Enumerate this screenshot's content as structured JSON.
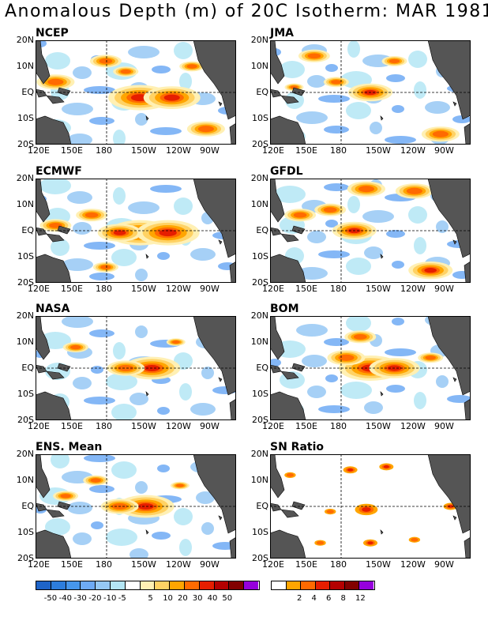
{
  "title": "Anomalous Depth (m) of 20C Isotherm: MAR 1981",
  "x_ticks": [
    "120E",
    "150E",
    "180",
    "150W",
    "120W",
    "90W"
  ],
  "y_ticks": [
    "20N",
    "10N",
    "EQ",
    "10S",
    "20S"
  ],
  "panels": [
    {
      "name": "NCEP",
      "hotspots": [
        [
          0.52,
          0.55,
          1.0
        ],
        [
          0.68,
          0.55,
          0.9
        ],
        [
          0.35,
          0.2,
          0.5
        ],
        [
          0.85,
          0.85,
          0.6
        ],
        [
          0.1,
          0.4,
          0.6
        ],
        [
          0.78,
          0.25,
          0.4
        ],
        [
          0.45,
          0.3,
          0.4
        ]
      ]
    },
    {
      "name": "JMA",
      "hotspots": [
        [
          0.5,
          0.5,
          0.7
        ],
        [
          0.33,
          0.4,
          0.4
        ],
        [
          0.22,
          0.15,
          0.5
        ],
        [
          0.85,
          0.9,
          0.6
        ],
        [
          0.62,
          0.2,
          0.4
        ],
        [
          0.12,
          0.45,
          0.3
        ]
      ]
    },
    {
      "name": "ECMWF",
      "hotspots": [
        [
          0.52,
          0.52,
          1.0
        ],
        [
          0.66,
          0.52,
          1.0
        ],
        [
          0.42,
          0.52,
          0.7
        ],
        [
          0.28,
          0.35,
          0.5
        ],
        [
          0.1,
          0.45,
          0.5
        ],
        [
          0.35,
          0.85,
          0.4
        ]
      ]
    },
    {
      "name": "GFDL",
      "hotspots": [
        [
          0.42,
          0.5,
          0.7
        ],
        [
          0.48,
          0.1,
          0.6
        ],
        [
          0.72,
          0.12,
          0.6
        ],
        [
          0.8,
          0.88,
          0.7
        ],
        [
          0.3,
          0.3,
          0.5
        ],
        [
          0.15,
          0.35,
          0.5
        ]
      ]
    },
    {
      "name": "NASA",
      "hotspots": [
        [
          0.58,
          0.5,
          0.9
        ],
        [
          0.45,
          0.5,
          0.6
        ],
        [
          0.2,
          0.3,
          0.4
        ],
        [
          0.7,
          0.25,
          0.3
        ]
      ]
    },
    {
      "name": "BOM",
      "hotspots": [
        [
          0.5,
          0.5,
          1.0
        ],
        [
          0.62,
          0.5,
          0.8
        ],
        [
          0.38,
          0.4,
          0.6
        ],
        [
          0.45,
          0.2,
          0.5
        ],
        [
          0.8,
          0.4,
          0.4
        ]
      ]
    },
    {
      "name": "ENS. Mean",
      "hotspots": [
        [
          0.55,
          0.5,
          0.9
        ],
        [
          0.42,
          0.5,
          0.6
        ],
        [
          0.3,
          0.25,
          0.4
        ],
        [
          0.72,
          0.3,
          0.3
        ],
        [
          0.15,
          0.4,
          0.4
        ]
      ]
    },
    {
      "name": "SN Ratio",
      "hotspots": [
        [
          0.48,
          0.53,
          0.8
        ],
        [
          0.3,
          0.55,
          0.4
        ],
        [
          0.4,
          0.15,
          0.5
        ],
        [
          0.58,
          0.12,
          0.5
        ],
        [
          0.72,
          0.82,
          0.4
        ],
        [
          0.5,
          0.85,
          0.5
        ],
        [
          0.25,
          0.85,
          0.4
        ],
        [
          0.9,
          0.5,
          0.5
        ],
        [
          0.1,
          0.2,
          0.4
        ]
      ]
    }
  ],
  "colorbar_anom": {
    "colors": [
      "#1e64c8",
      "#2d7ddc",
      "#4696eb",
      "#6eaaf5",
      "#96c8f5",
      "#b4e6f5",
      "#ffffff",
      "#fff0b4",
      "#ffd264",
      "#ffa500",
      "#ff6a00",
      "#e61e00",
      "#b40000",
      "#820000",
      "#9600dc"
    ],
    "labels": [
      "-50",
      "-40",
      "-30",
      "-20",
      "-10",
      "-5",
      "5",
      "10",
      "20",
      "30",
      "40",
      "50"
    ]
  },
  "colorbar_sn": {
    "colors": [
      "#ffffff",
      "#ffa500",
      "#ff6a00",
      "#e61e00",
      "#b40000",
      "#820000",
      "#9600dc"
    ],
    "labels": [
      "2",
      "4",
      "6",
      "8",
      "12"
    ]
  }
}
